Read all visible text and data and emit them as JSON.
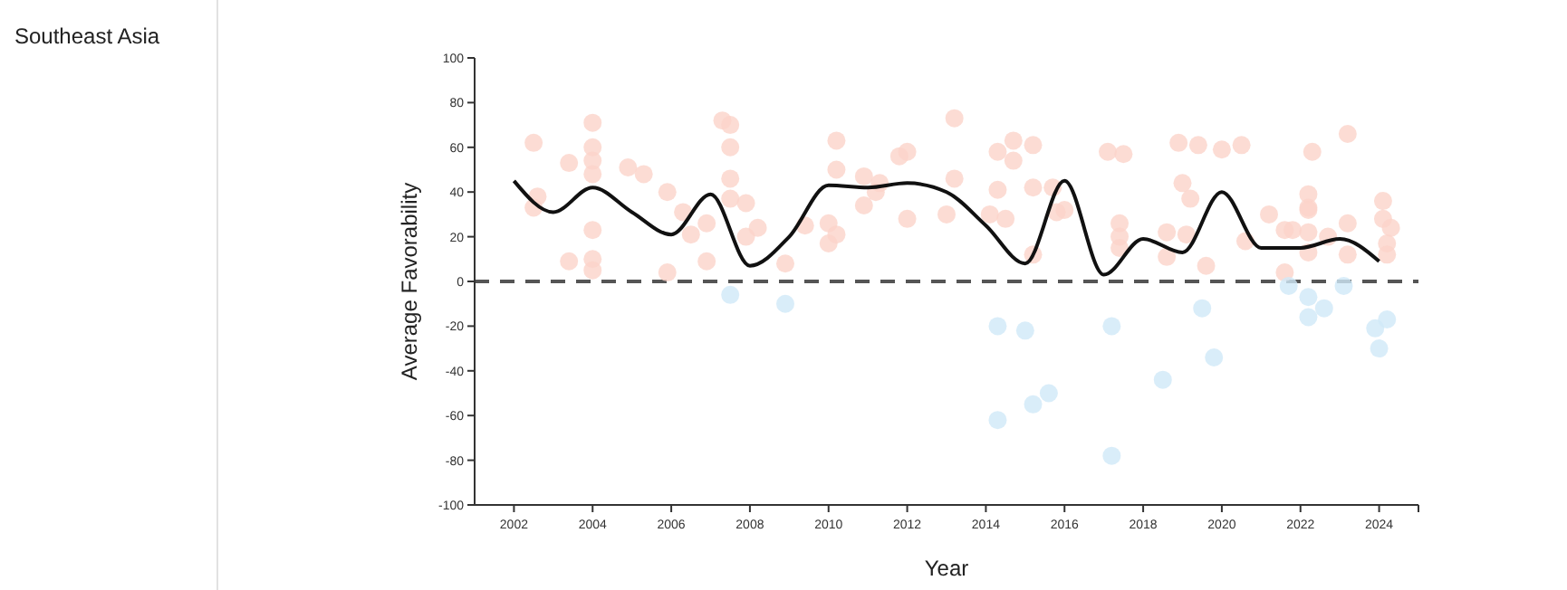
{
  "chart_data": {
    "type": "scatter",
    "title": "Southeast Asia",
    "xlabel": "Year",
    "ylabel": "Average Favorability",
    "xlim": [
      2001,
      2025
    ],
    "xticks": [
      2002,
      2004,
      2006,
      2008,
      2010,
      2012,
      2014,
      2016,
      2018,
      2020,
      2022,
      2024
    ],
    "ylim": [
      -100,
      100
    ],
    "yticks": [
      -100,
      -80,
      -60,
      -40,
      -20,
      0,
      20,
      40,
      60,
      80,
      100
    ],
    "grid": false,
    "ref_lines": [
      {
        "axis": "y",
        "value": 0,
        "color": "#555555",
        "line_style": "dashed"
      }
    ],
    "series": [
      {
        "marker": "circle",
        "color": "#fbd3c9",
        "x": [
          2002.5,
          2002.6,
          2002.5,
          2003.4,
          2003.4,
          2004,
          2004,
          2004,
          2004,
          2004,
          2004,
          2004,
          2004.9,
          2005.3,
          2005.9,
          2006.3,
          2006.5,
          2006.9,
          2005.9,
          2006.9,
          2007.3,
          2007.5,
          2007.5,
          2007.5,
          2007.5,
          2007.9,
          2007.9,
          2008.2,
          2008.9,
          2009.4,
          2010,
          2010,
          2010.2,
          2010.2,
          2010.2,
          2010.9,
          2010.9,
          2011.3,
          2011.2,
          2011.8,
          2012,
          2012,
          2013.2,
          2013.2,
          2013,
          2014.3,
          2014.3,
          2014.1,
          2014.5,
          2014.7,
          2014.7,
          2015.2,
          2015.2,
          2015.7,
          2015.8,
          2016,
          2015.2,
          2017.1,
          2017.5,
          2017.4,
          2017.4,
          2017.4,
          2019.6,
          2018.6,
          2018.6,
          2019.1,
          2018.9,
          2019.4,
          2019,
          2019.2,
          2020,
          2020.5,
          2020.6,
          2021.2,
          2021.6,
          2021.8,
          2021.6,
          2022.3,
          2022.2,
          2022.2,
          2022.2,
          2022.2,
          2022.2,
          2022.7,
          2023.2,
          2023.2,
          2023.2,
          2024.1,
          2024.1,
          2024.3,
          2024.2,
          2024.2
        ],
        "values": [
          62,
          38,
          33,
          53,
          9,
          71,
          60,
          54,
          48,
          23,
          10,
          5,
          51,
          48,
          40,
          31,
          21,
          26,
          4,
          9,
          72,
          70,
          60,
          46,
          37,
          35,
          20,
          24,
          8,
          25,
          26,
          17,
          63,
          50,
          21,
          47,
          34,
          44,
          40,
          56,
          58,
          28,
          73,
          46,
          30,
          58,
          41,
          30,
          28,
          63,
          54,
          61,
          42,
          42,
          31,
          32,
          12,
          58,
          57,
          26,
          20,
          15,
          7,
          22,
          11,
          21,
          62,
          61,
          44,
          37,
          59,
          61,
          18,
          30,
          23,
          23,
          4,
          58,
          39,
          33,
          32,
          22,
          13,
          20,
          66,
          26,
          12,
          36,
          28,
          24,
          17,
          12
        ]
      },
      {
        "marker": "circle",
        "color": "#cfe9f8",
        "x": [
          2007.5,
          2008.9,
          2014.3,
          2014.3,
          2015,
          2015.2,
          2015.6,
          2017.2,
          2017.2,
          2018.5,
          2019.5,
          2019.8,
          2021.7,
          2022.2,
          2022.2,
          2022.6,
          2023.1,
          2023.9,
          2024.2,
          2024
        ],
        "values": [
          -6,
          -10,
          -20,
          -62,
          -22,
          -55,
          -50,
          -20,
          -78,
          -44,
          -12,
          -34,
          -2,
          -7,
          -16,
          -12,
          -2,
          -21,
          -17,
          -30
        ]
      },
      {
        "type": "line",
        "marker": "none",
        "color": "#111111",
        "x": [
          2002,
          2003,
          2004,
          2005,
          2006,
          2007,
          2008,
          2009,
          2010,
          2011,
          2012,
          2013,
          2014,
          2015,
          2016,
          2017,
          2018,
          2019,
          2020,
          2021,
          2022,
          2023,
          2024
        ],
        "values": [
          45,
          31,
          42,
          31,
          21,
          39,
          7,
          20,
          43,
          42,
          44,
          40,
          25,
          8,
          45,
          3,
          19,
          13,
          40,
          15,
          15,
          19,
          9
        ]
      }
    ]
  }
}
